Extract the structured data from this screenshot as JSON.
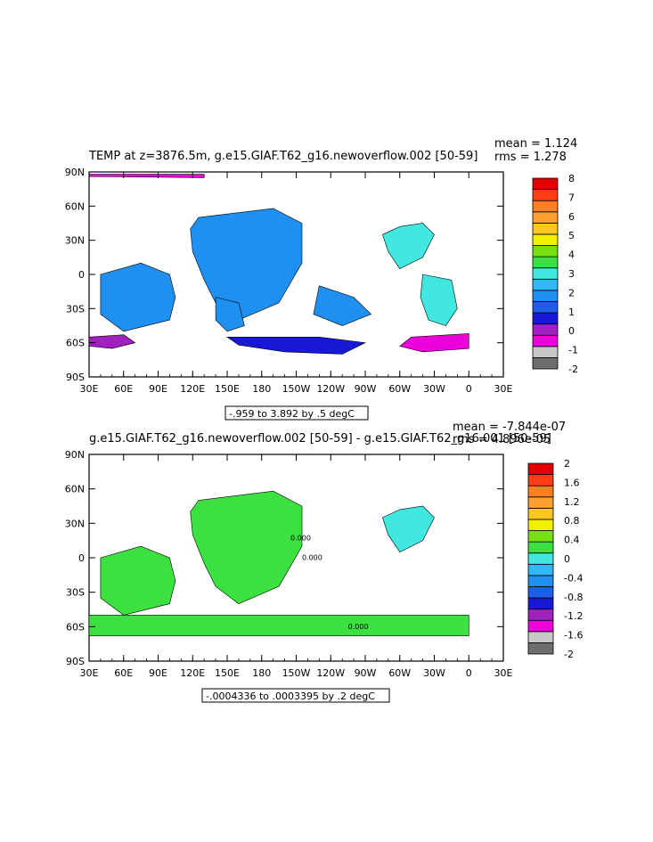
{
  "palette": {
    "cb1": [
      "#6e6e6e",
      "#c8c8c8",
      "#ee00dd",
      "#a020c0",
      "#1818d8",
      "#1e5ee8",
      "#2090f0",
      "#30b8f8",
      "#40e8e0",
      "#3ce040",
      "#78e010",
      "#f0f000",
      "#ffc820",
      "#ffa030",
      "#ff8020",
      "#ff3c14",
      "#e00000"
    ],
    "cb2": [
      "#6e6e6e",
      "#c8c8c8",
      "#ee00dd",
      "#a020c0",
      "#1818d8",
      "#1e5ee8",
      "#2090f0",
      "#30b8f8",
      "#40e8e0",
      "#3ce040",
      "#78e010",
      "#f0f000",
      "#ffc820",
      "#ffa030",
      "#ff8020",
      "#ff3c14",
      "#e00000"
    ]
  },
  "chart_data": [
    {
      "type": "heatmap",
      "title": "TEMP at z=3876.5m, g.e15.GIAF.T62_g16.newoverflow.002 [50-59]",
      "stats": {
        "mean": "mean = 1.124",
        "rms": "rms = 1.278"
      },
      "contour_label": "-.959 to 3.892 by .5 degC",
      "xticks": [
        "30E",
        "60E",
        "90E",
        "120E",
        "150E",
        "180",
        "150W",
        "120W",
        "90W",
        "60W",
        "30W",
        "0",
        "30E"
      ],
      "yticks": [
        "90N",
        "60N",
        "30N",
        "0",
        "30S",
        "60S",
        "90S"
      ],
      "colorbar_labels": [
        "8",
        "7",
        "6",
        "5",
        "4",
        "3",
        "2",
        "1",
        "0",
        "-1",
        "-2"
      ],
      "regions": [
        {
          "name": "pacific-deep",
          "cls": 6,
          "pts": [
            [
              125,
              50
            ],
            [
              190,
              58
            ],
            [
              215,
              45
            ],
            [
              215,
              10
            ],
            [
              195,
              -25
            ],
            [
              160,
              -40
            ],
            [
              140,
              -25
            ],
            [
              130,
              -5
            ],
            [
              120,
              20
            ],
            [
              118,
              40
            ]
          ]
        },
        {
          "name": "atlantic-north",
          "cls": 8,
          "pts": [
            [
              285,
              35
            ],
            [
              300,
              42
            ],
            [
              320,
              45
            ],
            [
              330,
              35
            ],
            [
              320,
              15
            ],
            [
              300,
              5
            ],
            [
              290,
              20
            ]
          ]
        },
        {
          "name": "atlantic-south",
          "cls": 8,
          "pts": [
            [
              320,
              0
            ],
            [
              345,
              -5
            ],
            [
              350,
              -30
            ],
            [
              340,
              -45
            ],
            [
              325,
              -40
            ],
            [
              318,
              -20
            ]
          ]
        },
        {
          "name": "indian-deep",
          "cls": 6,
          "pts": [
            [
              40,
              0
            ],
            [
              75,
              10
            ],
            [
              100,
              0
            ],
            [
              105,
              -20
            ],
            [
              100,
              -40
            ],
            [
              60,
              -50
            ],
            [
              40,
              -35
            ]
          ]
        },
        {
          "name": "tasman",
          "cls": 6,
          "pts": [
            [
              140,
              -20
            ],
            [
              160,
              -25
            ],
            [
              165,
              -45
            ],
            [
              150,
              -50
            ],
            [
              140,
              -40
            ]
          ]
        },
        {
          "name": "se-pacific",
          "cls": 6,
          "pts": [
            [
              230,
              -10
            ],
            [
              260,
              -20
            ],
            [
              275,
              -35
            ],
            [
              250,
              -45
            ],
            [
              225,
              -35
            ]
          ]
        },
        {
          "name": "aabw-indian",
          "cls": 3,
          "pts": [
            [
              30,
              -55
            ],
            [
              60,
              -53
            ],
            [
              70,
              -60
            ],
            [
              50,
              -65
            ],
            [
              30,
              -63
            ]
          ]
        },
        {
          "name": "aabw-weddell",
          "cls": 2,
          "pts": [
            [
              310,
              -55
            ],
            [
              360,
              -52
            ],
            [
              360,
              -65
            ],
            [
              320,
              -68
            ],
            [
              300,
              -63
            ]
          ]
        },
        {
          "name": "acc-deep",
          "cls": 4,
          "pts": [
            [
              150,
              -55
            ],
            [
              230,
              -55
            ],
            [
              270,
              -60
            ],
            [
              250,
              -70
            ],
            [
              200,
              -68
            ],
            [
              160,
              -62
            ]
          ]
        },
        {
          "name": "arctic",
          "cls": 2,
          "pts": [
            [
              30,
              88
            ],
            [
              130,
              88
            ],
            [
              130,
              85
            ],
            [
              30,
              86
            ]
          ]
        }
      ]
    },
    {
      "type": "heatmap",
      "title": "g.e15.GIAF.T62_g16.newoverflow.002 [50-59] - g.e15.GIAF.T62_g16.001 [50-59]",
      "stats": {
        "mean": "mean = -7.844e-07",
        "rms": "rms = 4.896e-05"
      },
      "contour_label": "-.0004336 to .0003395 by .2 degC",
      "xticks": [
        "30E",
        "60E",
        "90E",
        "120E",
        "150E",
        "180",
        "150W",
        "120W",
        "90W",
        "60W",
        "30W",
        "0",
        "30E"
      ],
      "yticks": [
        "90N",
        "60N",
        "30N",
        "0",
        "30S",
        "60S",
        "90S"
      ],
      "colorbar_labels": [
        "2",
        "1.6",
        "1.2",
        "0.8",
        "0.4",
        "0",
        "-0.4",
        "-0.8",
        "-1.2",
        "-1.6",
        "-2"
      ],
      "contour_annotations": [
        "0.000",
        "0.000",
        "0.000"
      ],
      "regions": [
        {
          "name": "pacific-diff",
          "cls": 9,
          "pts": [
            [
              125,
              50
            ],
            [
              190,
              58
            ],
            [
              215,
              45
            ],
            [
              215,
              10
            ],
            [
              195,
              -25
            ],
            [
              160,
              -40
            ],
            [
              140,
              -25
            ],
            [
              130,
              -5
            ],
            [
              120,
              20
            ],
            [
              118,
              40
            ]
          ]
        },
        {
          "name": "atlantic-diff",
          "cls": 8,
          "pts": [
            [
              285,
              35
            ],
            [
              300,
              42
            ],
            [
              320,
              45
            ],
            [
              330,
              35
            ],
            [
              320,
              15
            ],
            [
              300,
              5
            ],
            [
              290,
              20
            ]
          ]
        },
        {
          "name": "indian-diff",
          "cls": 9,
          "pts": [
            [
              40,
              0
            ],
            [
              75,
              10
            ],
            [
              100,
              0
            ],
            [
              105,
              -20
            ],
            [
              100,
              -40
            ],
            [
              60,
              -50
            ],
            [
              40,
              -35
            ]
          ]
        },
        {
          "name": "southern-diff",
          "cls": 9,
          "pts": [
            [
              30,
              -50
            ],
            [
              360,
              -50
            ],
            [
              360,
              -68
            ],
            [
              30,
              -68
            ]
          ]
        }
      ]
    }
  ]
}
